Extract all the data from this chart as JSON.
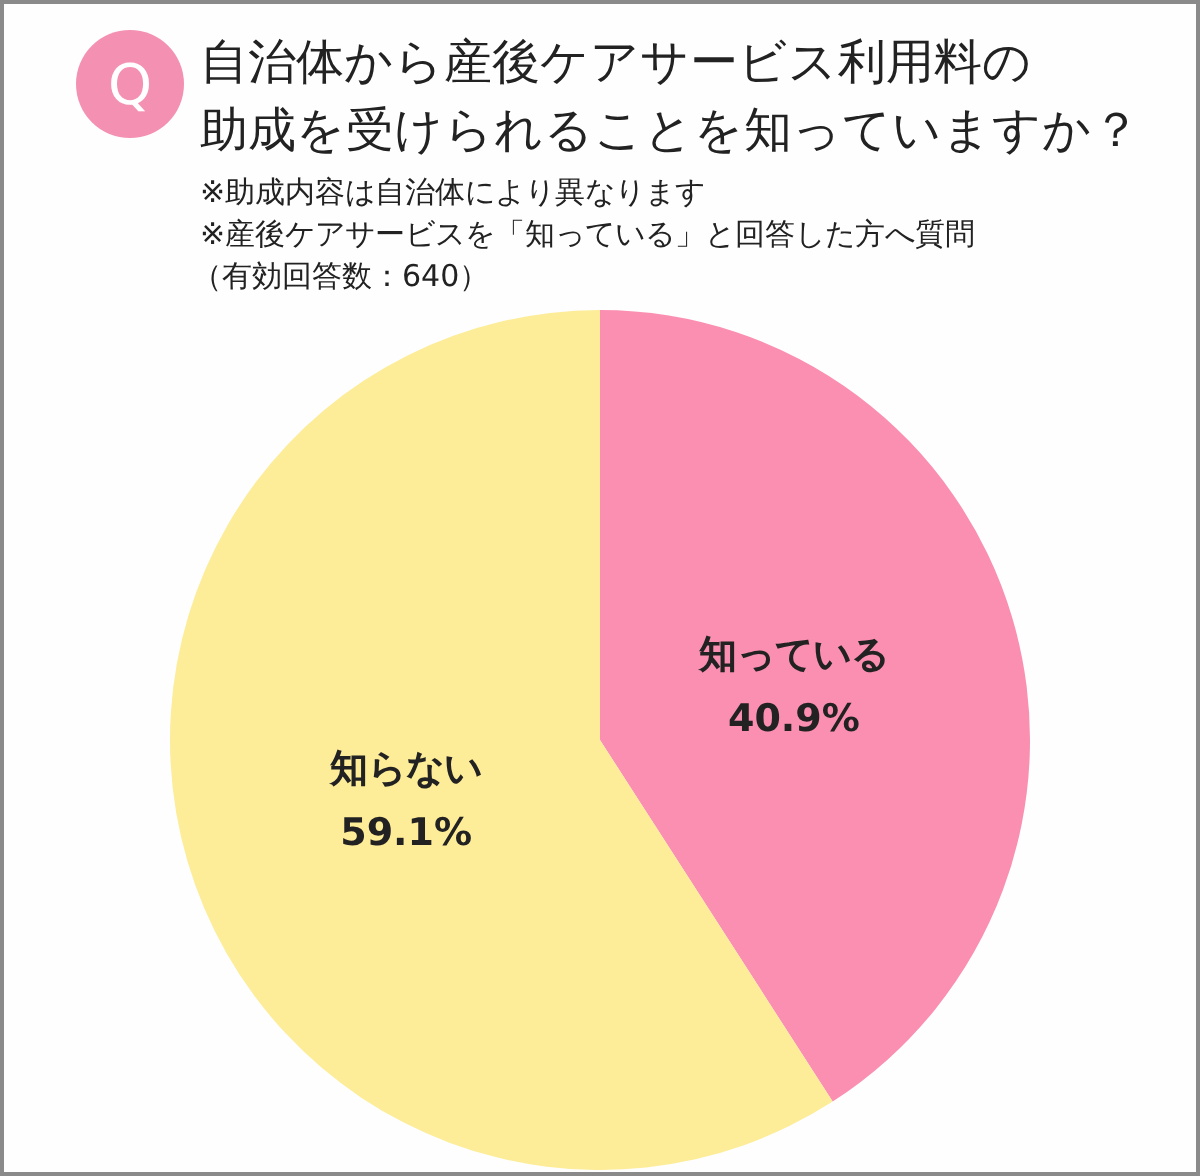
{
  "chart_data": {
    "type": "pie",
    "title": "自治体から産後ケアサービス利用料の助成を受けられることを知っていますか？",
    "annotations": [
      "Q",
      "※助成内容は自治体により異なります",
      "※産後ケアサービスを「知っている」と回答した方へ質問",
      "（有効回答数：640）"
    ],
    "categories": [
      "知っている",
      "知らない"
    ],
    "values": [
      40.9,
      59.1
    ],
    "colors": [
      "#fa8fb1",
      "#fdec98"
    ],
    "value_labels": [
      "40.9%",
      "59.1%"
    ]
  }
}
